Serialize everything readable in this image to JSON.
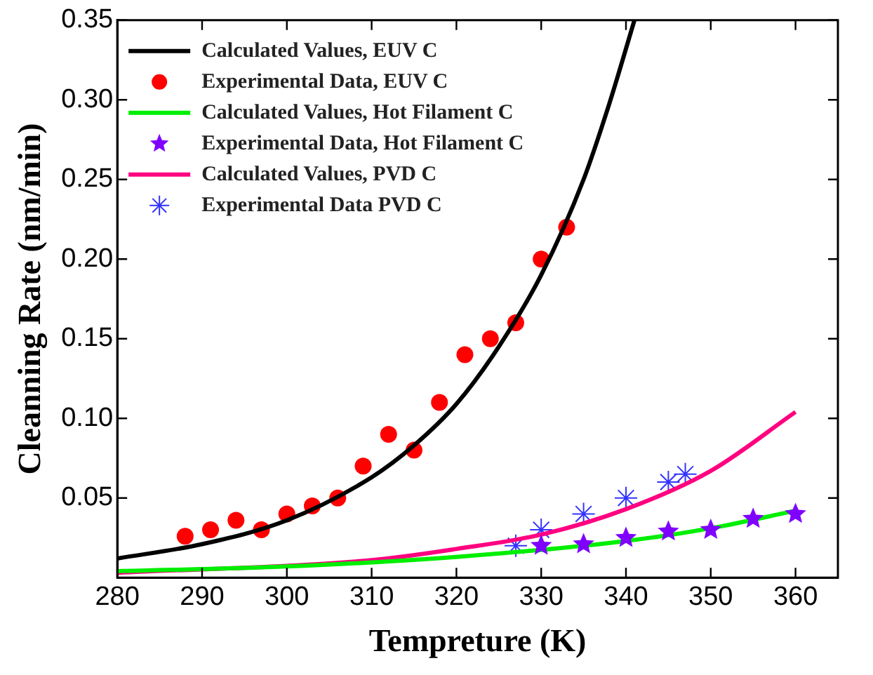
{
  "chart_data": {
    "type": "scatter",
    "xlabel": "Tempreture (K)",
    "ylabel": "Cleanning Rate (nm/min)",
    "xlim": [
      280,
      365
    ],
    "xticks": [
      280,
      290,
      300,
      310,
      320,
      330,
      340,
      350,
      360
    ],
    "ylim": [
      0,
      0.35
    ],
    "yticks": [
      {
        "value": 0,
        "label": null
      },
      {
        "value": 0.05,
        "label": "0.05"
      },
      {
        "value": 0.1,
        "label": "0.10"
      },
      {
        "value": 0.15,
        "label": "0.15"
      },
      {
        "value": 0.2,
        "label": "0.20"
      },
      {
        "value": 0.25,
        "label": "0.25"
      },
      {
        "value": 0.3,
        "label": "0.30"
      },
      {
        "value": 0.35,
        "label": "0.35"
      }
    ],
    "legend": "top left",
    "grid": false,
    "series": [
      {
        "name": "Calculated Values, EUV C",
        "type": "line",
        "color": "#000000",
        "marker": "none",
        "x": [
          280,
          290,
          300,
          310,
          315,
          320,
          325,
          330,
          335,
          338,
          341
        ],
        "values": [
          0.012,
          0.021,
          0.036,
          0.063,
          0.083,
          0.109,
          0.145,
          0.19,
          0.25,
          0.297,
          0.35
        ]
      },
      {
        "name": "Experimental Data, EUV C",
        "type": "scatter",
        "color": "#ff0000",
        "marker": "circle",
        "x": [
          288,
          291,
          294,
          297,
          300,
          303,
          306,
          309,
          312,
          315,
          318,
          321,
          324,
          327,
          330,
          333
        ],
        "values": [
          0.026,
          0.03,
          0.036,
          0.03,
          0.04,
          0.045,
          0.05,
          0.07,
          0.09,
          0.08,
          0.11,
          0.14,
          0.15,
          0.16,
          0.2,
          0.22
        ]
      },
      {
        "name": "Calculated Values, Hot Filament C",
        "type": "line",
        "color": "#00ee00",
        "marker": "none",
        "x": [
          280,
          300,
          320,
          340,
          350,
          360
        ],
        "values": [
          0.004,
          0.007,
          0.013,
          0.023,
          0.031,
          0.042
        ]
      },
      {
        "name": "Experimental Data, Hot Filament C",
        "type": "scatter",
        "color": "#7f00ff",
        "marker": "star",
        "x": [
          330,
          335,
          340,
          345,
          350,
          355,
          360
        ],
        "values": [
          0.02,
          0.021,
          0.025,
          0.029,
          0.03,
          0.037,
          0.04
        ]
      },
      {
        "name": "Calculated Values, PVD C",
        "type": "line",
        "color": "#ff0080",
        "marker": "none",
        "x": [
          280,
          310,
          320,
          330,
          340,
          350,
          360
        ],
        "values": [
          0.003,
          0.011,
          0.018,
          0.027,
          0.043,
          0.067,
          0.104
        ]
      },
      {
        "name": "Experimental Data PVD C",
        "type": "scatter",
        "color": "#3333ff",
        "marker": "cross",
        "x": [
          327,
          330,
          335,
          340,
          345,
          347
        ],
        "values": [
          0.02,
          0.03,
          0.04,
          0.05,
          0.06,
          0.065
        ]
      }
    ]
  }
}
